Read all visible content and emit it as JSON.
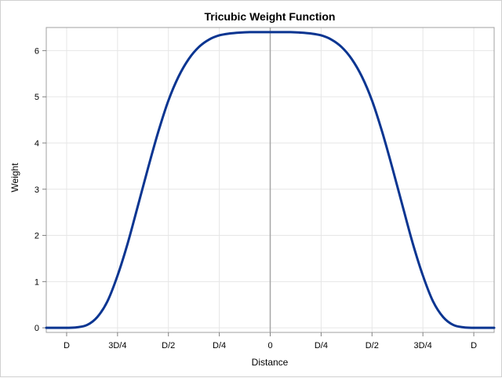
{
  "chart_data": {
    "type": "line",
    "title": "Tricubic Weight Function",
    "xlabel": "Distance",
    "ylabel": "Weight",
    "xlim": [
      -1.1,
      1.1
    ],
    "ylim": [
      -0.1,
      6.5
    ],
    "x_ticks": [
      -1,
      -0.75,
      -0.5,
      -0.25,
      0,
      0.25,
      0.5,
      0.75,
      1
    ],
    "x_tick_labels": [
      "D",
      "3D/4",
      "D/2",
      "D/4",
      "0",
      "D/4",
      "D/2",
      "3D/4",
      "D"
    ],
    "y_ticks": [
      0,
      1,
      2,
      3,
      4,
      5,
      6
    ],
    "y_tick_labels": [
      "0",
      "1",
      "2",
      "3",
      "4",
      "5",
      "6"
    ],
    "grid": true,
    "reference_line_x": 0,
    "series": [
      {
        "color": "#0a3591",
        "x": [
          -1.1,
          -1.05,
          -1.0,
          -0.95,
          -0.9,
          -0.85,
          -0.8,
          -0.75,
          -0.7,
          -0.65,
          -0.6,
          -0.55,
          -0.5,
          -0.45,
          -0.4,
          -0.35,
          -0.3,
          -0.25,
          -0.2,
          -0.15,
          -0.1,
          -0.05,
          0.0,
          0.05,
          0.1,
          0.15,
          0.2,
          0.25,
          0.3,
          0.35,
          0.4,
          0.45,
          0.5,
          0.55,
          0.6,
          0.65,
          0.7,
          0.75,
          0.8,
          0.85,
          0.9,
          0.95,
          1.0,
          1.05,
          1.1
        ],
        "y": [
          0,
          0,
          0,
          0.01,
          0.06,
          0.23,
          0.57,
          1.13,
          1.83,
          2.64,
          3.46,
          4.24,
          4.92,
          5.44,
          5.82,
          6.08,
          6.24,
          6.33,
          6.37,
          6.39,
          6.4,
          6.4,
          6.4,
          6.4,
          6.4,
          6.39,
          6.37,
          6.33,
          6.24,
          6.08,
          5.82,
          5.44,
          4.92,
          4.24,
          3.46,
          2.64,
          1.83,
          1.13,
          0.57,
          0.23,
          0.06,
          0.01,
          0,
          0,
          0
        ]
      }
    ]
  }
}
